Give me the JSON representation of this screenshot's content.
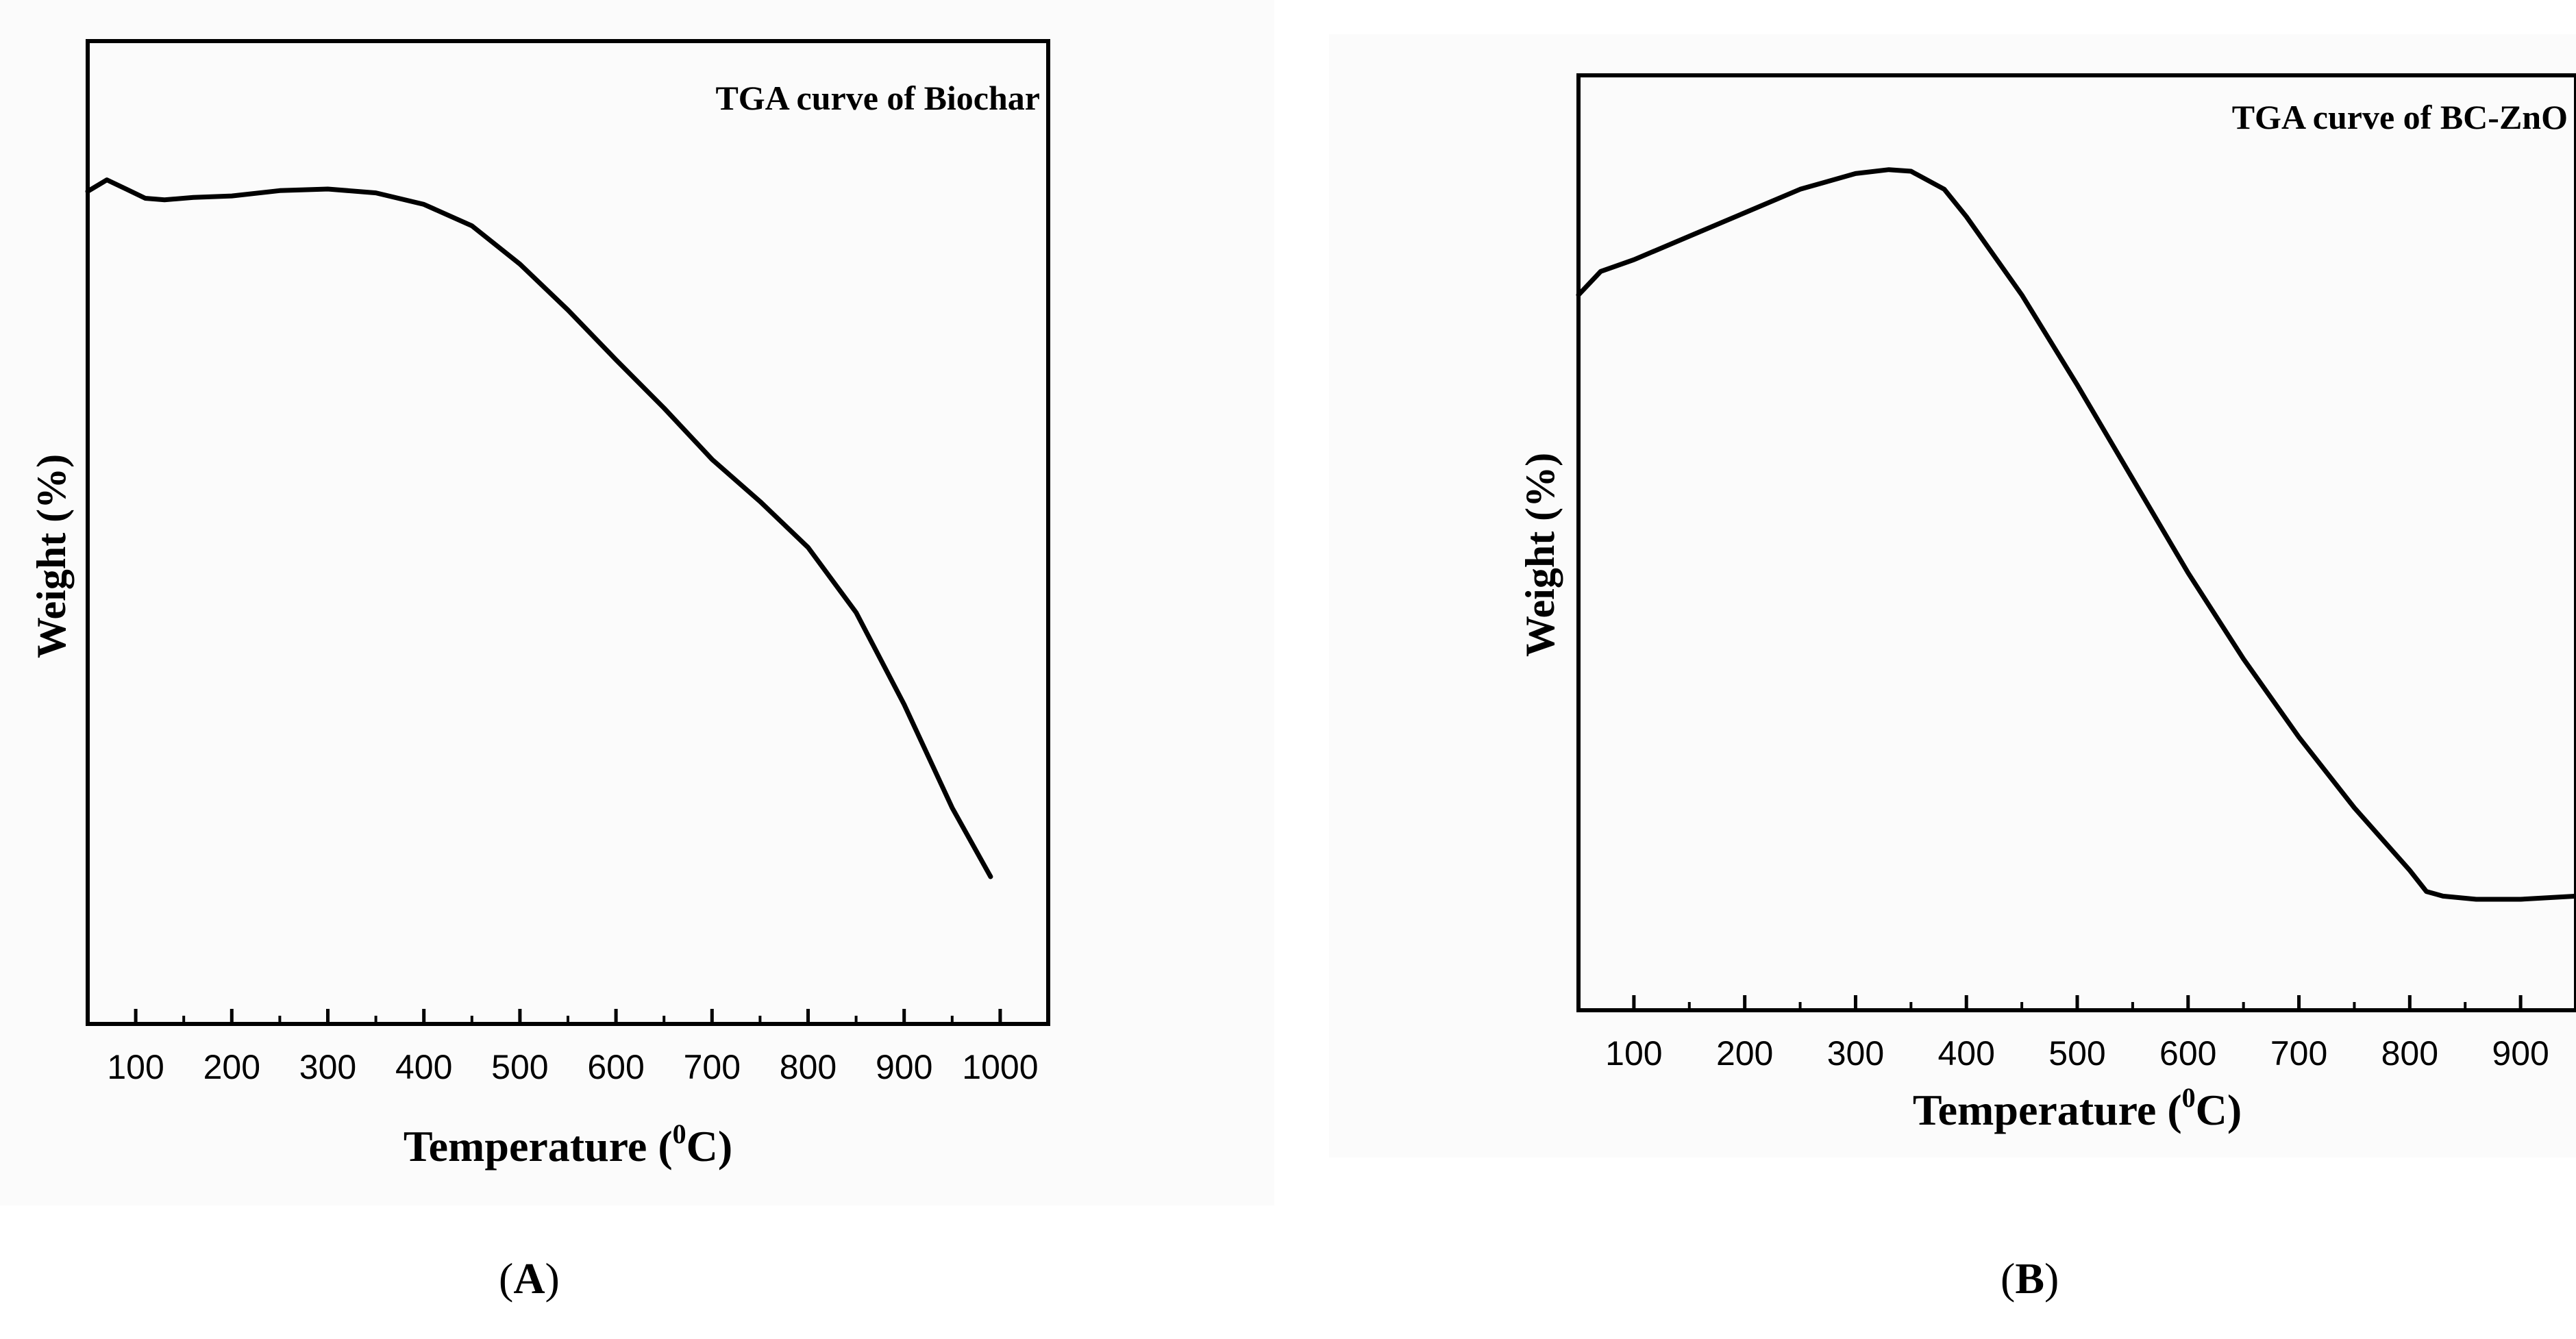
{
  "chart_data": [
    {
      "type": "line",
      "panel_label": "A",
      "title": "TGA curve of Biochar",
      "xlabel": "Temperature (",
      "xlabel_sup": "0",
      "xlabel_end": "C)",
      "ylabel": "Weight (%)",
      "xlim": [
        50,
        1050
      ],
      "ylim": [
        0,
        100
      ],
      "xticks": [
        100,
        200,
        300,
        400,
        500,
        600,
        700,
        800,
        900,
        1000
      ],
      "grid": false,
      "series": [
        {
          "name": "Biochar",
          "x": [
            50,
            70,
            90,
            110,
            130,
            160,
            200,
            250,
            300,
            350,
            400,
            450,
            500,
            550,
            600,
            650,
            700,
            750,
            800,
            850,
            900,
            950,
            990
          ],
          "y": [
            89.5,
            91.0,
            89.8,
            88.6,
            88.4,
            88.7,
            88.9,
            89.6,
            89.8,
            89.3,
            87.8,
            85.0,
            80.0,
            74.0,
            67.5,
            61.2,
            54.5,
            49.0,
            43.0,
            34.5,
            22.5,
            9.0,
            0.0
          ]
        }
      ]
    },
    {
      "type": "line",
      "panel_label": "B",
      "title": "TGA curve of BC-ZnO",
      "xlabel": "Temperature (",
      "xlabel_sup": "0",
      "xlabel_end": "C)",
      "ylabel": "Weight (%)",
      "xlim": [
        50,
        950
      ],
      "ylim": [
        0,
        100
      ],
      "xticks": [
        100,
        200,
        300,
        400,
        500,
        600,
        700,
        800,
        900
      ],
      "grid": false,
      "series": [
        {
          "name": "BC-ZnO",
          "x": [
            50,
            70,
            100,
            150,
            200,
            250,
            300,
            330,
            350,
            380,
            400,
            450,
            500,
            550,
            600,
            650,
            700,
            750,
            800,
            815,
            830,
            860,
            900,
            950
          ],
          "y": [
            80.0,
            83.0,
            84.5,
            87.5,
            90.5,
            93.5,
            95.5,
            96.0,
            95.8,
            93.5,
            90.0,
            80.0,
            68.5,
            56.5,
            44.5,
            33.5,
            23.5,
            14.5,
            6.5,
            3.8,
            3.2,
            2.8,
            2.8,
            3.2
          ]
        }
      ]
    }
  ]
}
